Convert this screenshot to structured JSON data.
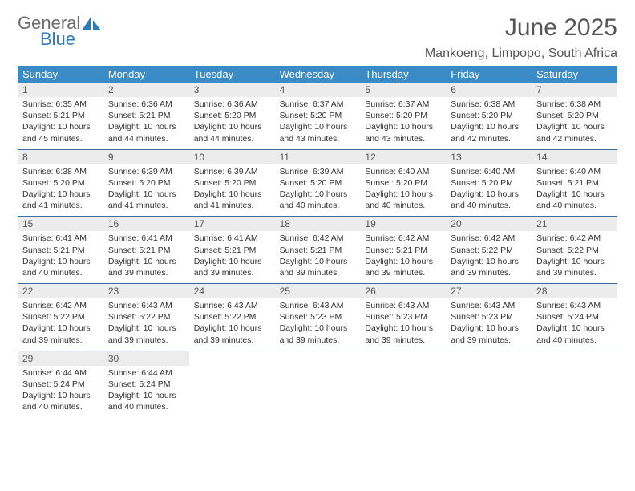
{
  "logo": {
    "word1": "General",
    "word2": "Blue"
  },
  "title": "June 2025",
  "location": "Mankoeng, Limpopo, South Africa",
  "colors": {
    "header_bg": "#3b8bc6",
    "header_text": "#ffffff",
    "daynum_bg": "#ececec",
    "rule": "#3b6ea0",
    "title_color": "#555555",
    "body_text": "#333333",
    "logo_gray": "#6b6b6b",
    "logo_blue": "#2f7bb8"
  },
  "day_labels": [
    "Sunday",
    "Monday",
    "Tuesday",
    "Wednesday",
    "Thursday",
    "Friday",
    "Saturday"
  ],
  "weeks": [
    [
      {
        "n": "1",
        "sunrise": "6:35 AM",
        "sunset": "5:21 PM",
        "daylight": "10 hours and 45 minutes."
      },
      {
        "n": "2",
        "sunrise": "6:36 AM",
        "sunset": "5:21 PM",
        "daylight": "10 hours and 44 minutes."
      },
      {
        "n": "3",
        "sunrise": "6:36 AM",
        "sunset": "5:20 PM",
        "daylight": "10 hours and 44 minutes."
      },
      {
        "n": "4",
        "sunrise": "6:37 AM",
        "sunset": "5:20 PM",
        "daylight": "10 hours and 43 minutes."
      },
      {
        "n": "5",
        "sunrise": "6:37 AM",
        "sunset": "5:20 PM",
        "daylight": "10 hours and 43 minutes."
      },
      {
        "n": "6",
        "sunrise": "6:38 AM",
        "sunset": "5:20 PM",
        "daylight": "10 hours and 42 minutes."
      },
      {
        "n": "7",
        "sunrise": "6:38 AM",
        "sunset": "5:20 PM",
        "daylight": "10 hours and 42 minutes."
      }
    ],
    [
      {
        "n": "8",
        "sunrise": "6:38 AM",
        "sunset": "5:20 PM",
        "daylight": "10 hours and 41 minutes."
      },
      {
        "n": "9",
        "sunrise": "6:39 AM",
        "sunset": "5:20 PM",
        "daylight": "10 hours and 41 minutes."
      },
      {
        "n": "10",
        "sunrise": "6:39 AM",
        "sunset": "5:20 PM",
        "daylight": "10 hours and 41 minutes."
      },
      {
        "n": "11",
        "sunrise": "6:39 AM",
        "sunset": "5:20 PM",
        "daylight": "10 hours and 40 minutes."
      },
      {
        "n": "12",
        "sunrise": "6:40 AM",
        "sunset": "5:20 PM",
        "daylight": "10 hours and 40 minutes."
      },
      {
        "n": "13",
        "sunrise": "6:40 AM",
        "sunset": "5:20 PM",
        "daylight": "10 hours and 40 minutes."
      },
      {
        "n": "14",
        "sunrise": "6:40 AM",
        "sunset": "5:21 PM",
        "daylight": "10 hours and 40 minutes."
      }
    ],
    [
      {
        "n": "15",
        "sunrise": "6:41 AM",
        "sunset": "5:21 PM",
        "daylight": "10 hours and 40 minutes."
      },
      {
        "n": "16",
        "sunrise": "6:41 AM",
        "sunset": "5:21 PM",
        "daylight": "10 hours and 39 minutes."
      },
      {
        "n": "17",
        "sunrise": "6:41 AM",
        "sunset": "5:21 PM",
        "daylight": "10 hours and 39 minutes."
      },
      {
        "n": "18",
        "sunrise": "6:42 AM",
        "sunset": "5:21 PM",
        "daylight": "10 hours and 39 minutes."
      },
      {
        "n": "19",
        "sunrise": "6:42 AM",
        "sunset": "5:21 PM",
        "daylight": "10 hours and 39 minutes."
      },
      {
        "n": "20",
        "sunrise": "6:42 AM",
        "sunset": "5:22 PM",
        "daylight": "10 hours and 39 minutes."
      },
      {
        "n": "21",
        "sunrise": "6:42 AM",
        "sunset": "5:22 PM",
        "daylight": "10 hours and 39 minutes."
      }
    ],
    [
      {
        "n": "22",
        "sunrise": "6:42 AM",
        "sunset": "5:22 PM",
        "daylight": "10 hours and 39 minutes."
      },
      {
        "n": "23",
        "sunrise": "6:43 AM",
        "sunset": "5:22 PM",
        "daylight": "10 hours and 39 minutes."
      },
      {
        "n": "24",
        "sunrise": "6:43 AM",
        "sunset": "5:22 PM",
        "daylight": "10 hours and 39 minutes."
      },
      {
        "n": "25",
        "sunrise": "6:43 AM",
        "sunset": "5:23 PM",
        "daylight": "10 hours and 39 minutes."
      },
      {
        "n": "26",
        "sunrise": "6:43 AM",
        "sunset": "5:23 PM",
        "daylight": "10 hours and 39 minutes."
      },
      {
        "n": "27",
        "sunrise": "6:43 AM",
        "sunset": "5:23 PM",
        "daylight": "10 hours and 39 minutes."
      },
      {
        "n": "28",
        "sunrise": "6:43 AM",
        "sunset": "5:24 PM",
        "daylight": "10 hours and 40 minutes."
      }
    ],
    [
      {
        "n": "29",
        "sunrise": "6:44 AM",
        "sunset": "5:24 PM",
        "daylight": "10 hours and 40 minutes."
      },
      {
        "n": "30",
        "sunrise": "6:44 AM",
        "sunset": "5:24 PM",
        "daylight": "10 hours and 40 minutes."
      },
      null,
      null,
      null,
      null,
      null
    ]
  ],
  "labels": {
    "sunrise": "Sunrise:",
    "sunset": "Sunset:",
    "daylight": "Daylight:"
  }
}
